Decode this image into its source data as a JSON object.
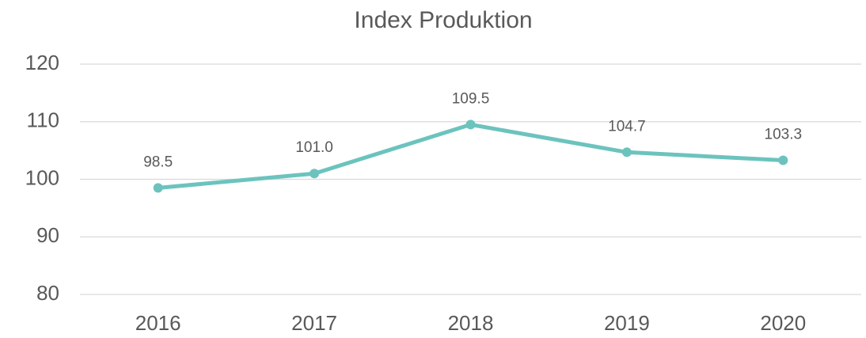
{
  "chart_data": {
    "type": "line",
    "title": "Index Produktion",
    "categories": [
      "2016",
      "2017",
      "2018",
      "2019",
      "2020"
    ],
    "values": [
      98.5,
      101.0,
      109.5,
      104.7,
      103.3
    ],
    "value_labels": [
      "98.5",
      "101.0",
      "109.5",
      "104.7",
      "103.3"
    ],
    "color": "#6cc3be",
    "ylim": [
      80,
      120
    ],
    "yticks": [
      80,
      90,
      100,
      110,
      120
    ],
    "grid": true
  }
}
